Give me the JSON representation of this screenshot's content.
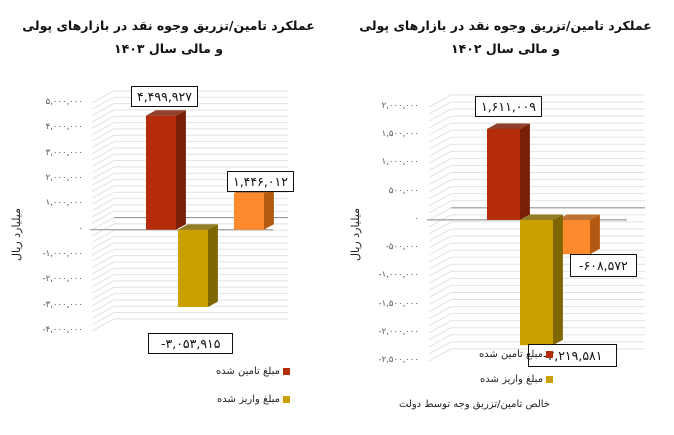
{
  "charts": [
    {
      "id": "chart-1403",
      "title_line1": "عملکرد تامین/تزریق وجوه نقد در بازارهای پولی",
      "title_line2": "و مالی سال ۱۴۰۳",
      "ylabel": "میلیارد ریال",
      "ticks": [
        "۵,۰۰۰,۰۰۰",
        "۴,۰۰۰,۰۰۰",
        "۳,۰۰۰,۰۰۰",
        "۲,۰۰۰,۰۰۰",
        "۱,۰۰۰,۰۰۰",
        "۰",
        "-۱,۰۰۰,۰۰۰",
        "-۲,۰۰۰,۰۰۰",
        "-۳,۰۰۰,۰۰۰",
        "-۴,۰۰۰,۰۰۰"
      ],
      "value_labels": [
        "۴,۴۹۹,۹۲۷",
        "-۳,۰۵۳,۹۱۵",
        "۱,۴۴۶,۰۱۲"
      ],
      "legend": [
        "مبلغ تامین شده",
        "مبلغ واریز شده"
      ]
    },
    {
      "id": "chart-1402",
      "title_line1": "عملکرد تامین/تزریق وجوه نقد در بازارهای پولی",
      "title_line2": "و مالی سال ۱۴۰۲",
      "ylabel": "میلیارد ریال",
      "ticks": [
        "۲,۰۰۰,۰۰۰",
        "۱,۵۰۰,۰۰۰",
        "۱,۰۰۰,۰۰۰",
        "۵۰۰,۰۰۰",
        "۰",
        "-۵۰۰,۰۰۰",
        "-۱,۰۰۰,۰۰۰",
        "-۱,۵۰۰,۰۰۰",
        "-۲,۰۰۰,۰۰۰",
        "-۲,۵۰۰,۰۰۰"
      ],
      "value_labels": [
        "۱,۶۱۱,۰۰۹",
        "-۲,۲۱۹,۵۸۱",
        "-۶۰۸,۵۷۲"
      ],
      "legend": [
        "مبلغ تامین شده",
        "مبلغ واریز شده",
        "خالص تامین/تزریق وجه توسط دولت"
      ]
    }
  ],
  "colors": {
    "funded": "#B52C0A",
    "funded_side": "#7A1E06",
    "deposited": "#C9A000",
    "deposited_side": "#806600",
    "net": "#FF8A2E",
    "net_side": "#B35A12",
    "grid": "#DADADA",
    "axis": "#8C8C8C"
  },
  "chart_data": [
    {
      "type": "bar",
      "title": "عملکرد تامین/تزریق وجوه نقد در بازارهای پولی و مالی سال ۱۴۰۳",
      "xlabel": "",
      "ylabel": "میلیارد ریال",
      "categories": [
        "مبلغ تامین شده",
        "مبلغ واریز شده",
        "خالص تامین/تزریق وجه توسط دولت"
      ],
      "values": [
        4499927,
        -3053915,
        1446012
      ],
      "ylim": [
        -4000000,
        5000000
      ],
      "yticks": [
        5000000,
        4000000,
        3000000,
        2000000,
        1000000,
        0,
        -1000000,
        -2000000,
        -3000000,
        -4000000
      ],
      "grid": true,
      "style": "3d",
      "legend_position": "bottom",
      "legend": [
        "مبلغ تامین شده",
        "مبلغ واریز شده"
      ]
    },
    {
      "type": "bar",
      "title": "عملکرد تامین/تزریق وجوه نقد در بازارهای پولی و مالی سال ۱۴۰۲",
      "xlabel": "",
      "ylabel": "میلیارد ریال",
      "categories": [
        "مبلغ تامین شده",
        "مبلغ واریز شده",
        "خالص تامین/تزریق وجه توسط دولت"
      ],
      "values": [
        1611009,
        -2219581,
        -608572
      ],
      "ylim": [
        -2500000,
        2000000
      ],
      "yticks": [
        2000000,
        1500000,
        1000000,
        500000,
        0,
        -500000,
        -1000000,
        -1500000,
        -2000000,
        -2500000
      ],
      "grid": true,
      "style": "3d",
      "legend_position": "bottom",
      "legend": [
        "مبلغ تامین شده",
        "مبلغ واریز شده",
        "خالص تامین/تزریق وجه توسط دولت"
      ]
    }
  ]
}
